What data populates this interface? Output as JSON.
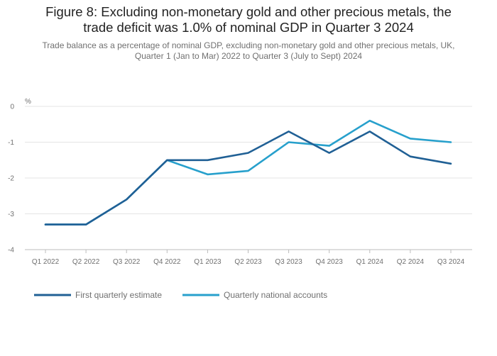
{
  "title_line1": "Figure 8: Excluding non-monetary gold and other precious metals, the",
  "title_line2": "trade deficit was 1.0% of nominal GDP in Quarter 3 2024",
  "subtitle_line1": "Trade balance as a percentage of nominal GDP, excluding non-monetary gold and other precious metals, UK,",
  "subtitle_line2": "Quarter 1 (Jan to Mar) 2022 to Quarter 3 (July to Sept) 2024",
  "chart_data": {
    "type": "line",
    "title": "Figure 8: Excluding non-monetary gold and other precious metals, the trade deficit was 1.0% of nominal GDP in Quarter 3 2024",
    "subtitle": "Trade balance as a percentage of nominal GDP, excluding non-monetary gold and other precious metals, UK, Quarter 1 (Jan to Mar) 2022 to Quarter 3 (July to Sept) 2024",
    "ylabel": "%",
    "xlabel": "",
    "categories": [
      "Q1 2022",
      "Q2 2022",
      "Q3 2022",
      "Q4 2022",
      "Q1 2023",
      "Q2 2023",
      "Q3 2023",
      "Q4 2023",
      "Q1 2024",
      "Q2 2024",
      "Q3 2024"
    ],
    "ylim": [
      -4,
      0
    ],
    "yticks": [
      0,
      -1,
      -2,
      -3,
      -4
    ],
    "grid": true,
    "legend_position": "bottom-left",
    "series": [
      {
        "name": "First quarterly estimate",
        "color": "#206095",
        "values": [
          -3.3,
          -3.3,
          -2.6,
          -1.5,
          -1.5,
          -1.3,
          -0.7,
          -1.3,
          -0.7,
          -1.4,
          -1.6
        ]
      },
      {
        "name": "Quarterly national accounts",
        "color": "#27a0cc",
        "values": [
          -3.3,
          -3.3,
          -2.6,
          -1.5,
          -1.9,
          -1.8,
          -1.0,
          -1.1,
          -0.4,
          -0.9,
          -1.0
        ]
      }
    ]
  }
}
